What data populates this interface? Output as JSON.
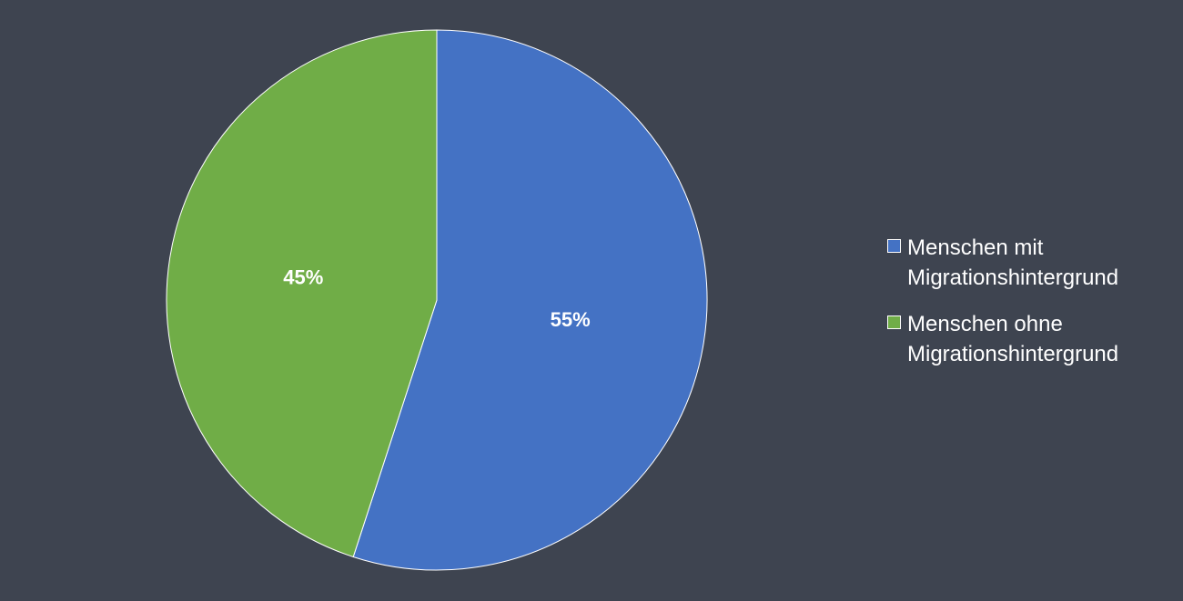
{
  "chart_data": {
    "type": "pie",
    "categories": [
      "Menschen mit Migrationshintergrund",
      "Menschen ohne Migrationshintergrund"
    ],
    "values": [
      55,
      45
    ],
    "value_labels": [
      "55%",
      "45%"
    ],
    "colors": [
      "#4472c4",
      "#70ad47"
    ],
    "legend": "right"
  }
}
